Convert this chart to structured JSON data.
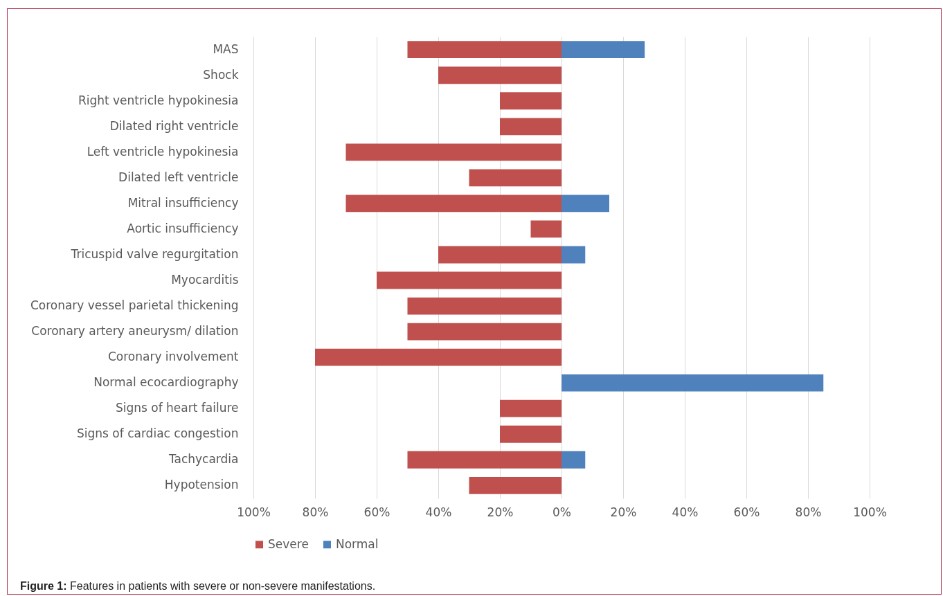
{
  "chart_data": {
    "type": "bar",
    "orientation": "horizontal",
    "categories": [
      "MAS",
      "Shock",
      "Right ventricle hypokinesia",
      "Dilated right ventricle",
      "Left ventricle hypokinesia",
      "Dilated left ventricle",
      "Mitral insufficiency",
      "Aortic insufficiency",
      "Tricuspid valve regurgitation",
      "Myocarditis",
      "Coronary vessel parietal thickening",
      "Coronary artery aneurysm/ dilation",
      "Coronary involvement",
      "Normal ecocardiography",
      "Signs of heart failure",
      "Signs of cardiac congestion",
      "Tachycardia",
      "Hypotension"
    ],
    "series": [
      {
        "name": "Severe",
        "color": "#c0504d",
        "values": [
          -50,
          -40,
          -20,
          -20,
          -70,
          -30,
          -70,
          -10,
          -40,
          -60,
          -50,
          -50,
          -80,
          null,
          -20,
          -20,
          -50,
          -30
        ]
      },
      {
        "name": "Normal",
        "color": "#4f81bd",
        "values": [
          27,
          null,
          null,
          null,
          null,
          null,
          15.5,
          null,
          7.7,
          null,
          null,
          null,
          null,
          85,
          null,
          null,
          7.7,
          null
        ]
      }
    ],
    "xlim": [
      -100,
      100
    ],
    "xticks": [
      {
        "value": -100,
        "label": "100%"
      },
      {
        "value": -80,
        "label": "80%"
      },
      {
        "value": -60,
        "label": "60%"
      },
      {
        "value": -40,
        "label": "40%"
      },
      {
        "value": -20,
        "label": "20%"
      },
      {
        "value": 0,
        "label": "0%"
      },
      {
        "value": 20,
        "label": "20%"
      },
      {
        "value": 40,
        "label": "40%"
      },
      {
        "value": 60,
        "label": "60%"
      },
      {
        "value": 80,
        "label": "80%"
      },
      {
        "value": 100,
        "label": "100%"
      }
    ],
    "grid": "x",
    "legend": "bottom",
    "annotations": [
      "Figure 1: Features in patients with severe or non-severe manifestations."
    ]
  }
}
